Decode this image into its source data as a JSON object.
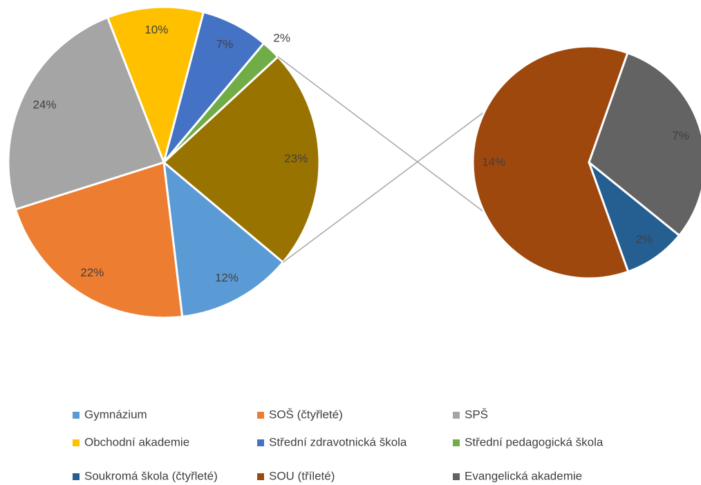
{
  "chart_data": {
    "type": "pie_of_pie",
    "categories": [
      "Gymnázium",
      "SOŠ (čtyřleté)",
      "SPŠ",
      "Obchodní akademie",
      "Střední zdravotnická škola",
      "Střední pedagogická škola",
      "Soukromá škola (čtyřleté)",
      "SOU (tříleté)",
      "Evangelická akademie"
    ],
    "values": [
      12,
      22,
      24,
      10,
      7,
      2,
      2,
      14,
      7
    ],
    "value_labels": [
      "12%",
      "22%",
      "24%",
      "10%",
      "7%",
      "2%",
      "2%",
      "14%",
      "7%"
    ],
    "colors": [
      "#5b9bd5",
      "#ed7d31",
      "#a5a5a5",
      "#ffc000",
      "#4472c4",
      "#70ad47",
      "#255e91",
      "#9e480e",
      "#636363"
    ],
    "second_plot_values": 3,
    "other_value": 23,
    "other_value_label": "23%",
    "other_color": "#997300",
    "legend": "bottom"
  }
}
